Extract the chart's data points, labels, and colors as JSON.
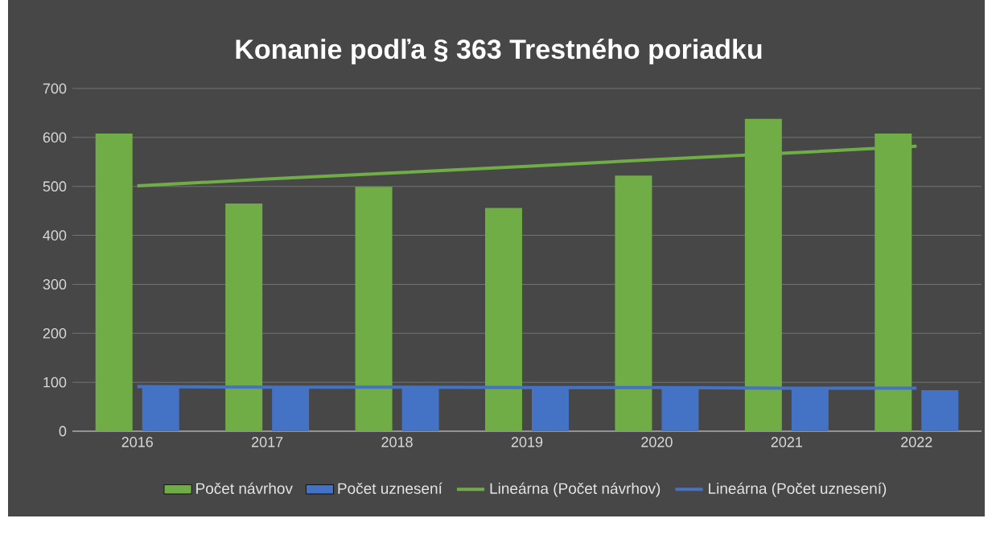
{
  "chart_data": {
    "type": "bar",
    "title": "Konanie podľa § 363 Trestného poriadku",
    "categories": [
      "2016",
      "2017",
      "2018",
      "2019",
      "2020",
      "2021",
      "2022"
    ],
    "series": [
      {
        "name": "Počet návrhov",
        "color": "#70ad47",
        "values": [
          608,
          465,
          499,
          456,
          522,
          638,
          608
        ]
      },
      {
        "name": "Počet uznesení",
        "color": "#4472c4",
        "values": [
          91,
          90,
          92,
          90,
          89,
          89,
          84
        ]
      },
      {
        "name": "Lineárna (Počet návrhov)",
        "type": "line",
        "color": "#70ad47",
        "values": [
          501,
          515,
          528,
          541,
          555,
          568,
          582
        ]
      },
      {
        "name": "Lineárna (Počet uznesení)",
        "type": "line",
        "color": "#4472c4",
        "values": [
          91,
          90,
          90,
          89,
          89,
          88,
          88
        ]
      }
    ],
    "ylim": [
      0,
      700
    ],
    "yticks": [
      0,
      100,
      200,
      300,
      400,
      500,
      600,
      700
    ],
    "grid": "y",
    "legend": "bottom"
  }
}
